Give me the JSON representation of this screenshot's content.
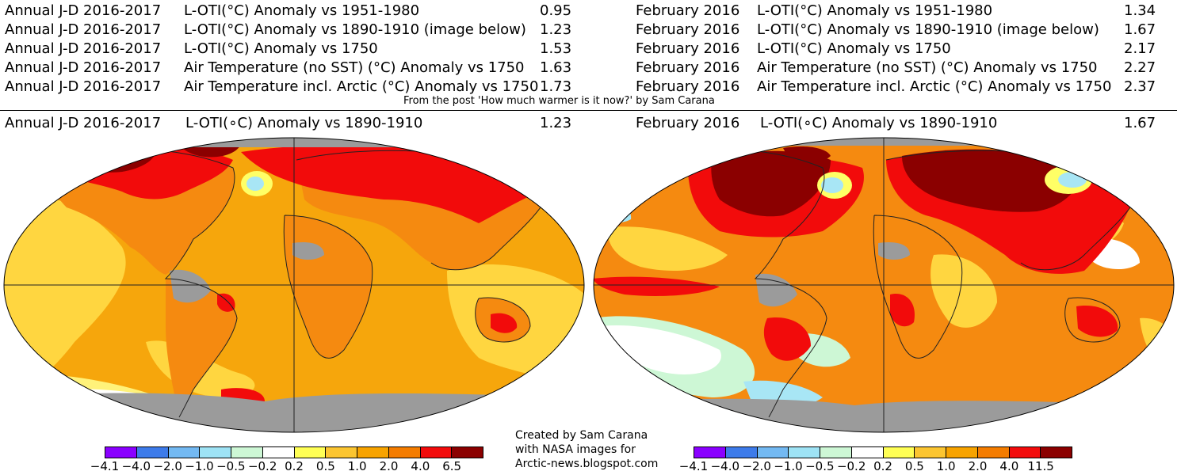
{
  "table_left": {
    "rows": [
      {
        "period": "Annual J-D 2016-2017",
        "metric": "L-OTI(°C) Anomaly vs 1951-1980",
        "value": "0.95"
      },
      {
        "period": "Annual J-D 2016-2017",
        "metric": "L-OTI(°C) Anomaly vs 1890-1910 (image below)",
        "value": "1.23"
      },
      {
        "period": "Annual J-D 2016-2017",
        "metric": "L-OTI(°C) Anomaly vs 1750",
        "value": "1.53"
      },
      {
        "period": "Annual J-D 2016-2017",
        "metric": "Air Temperature (no SST) (°C) Anomaly vs 1750",
        "value": "1.63"
      },
      {
        "period": "Annual J-D 2016-2017",
        "metric": "Air Temperature incl. Arctic (°C) Anomaly vs 1750",
        "value": "1.73"
      }
    ]
  },
  "table_right": {
    "rows": [
      {
        "period": "February 2016",
        "metric": "L-OTI(°C) Anomaly vs 1951-1980",
        "value": "1.34"
      },
      {
        "period": "February 2016",
        "metric": "L-OTI(°C) Anomaly vs 1890-1910 (image below)",
        "value": "1.67"
      },
      {
        "period": "February 2016",
        "metric": "L-OTI(°C) Anomaly vs 1750",
        "value": "2.17"
      },
      {
        "period": "February 2016",
        "metric": "Air Temperature (no SST) (°C) Anomaly vs 1750",
        "value": "2.27"
      },
      {
        "period": "February 2016",
        "metric": "Air Temperature incl. Arctic (°C) Anomaly vs 1750",
        "value": "2.37"
      }
    ]
  },
  "source_note": "From the post 'How much warmer is it now?' by Sam Carana",
  "map_left": {
    "period": "Annual J-D 2016-2017",
    "metric": "L-OTI(∘C) Anomaly vs 1890-1910",
    "value": "1.23",
    "legend_ticks": [
      "−4.1",
      "−4.0",
      "−2.0",
      "−1.0",
      "−0.5",
      "−0.2",
      "0.2",
      "0.5",
      "1.0",
      "2.0",
      "4.0",
      "6.5"
    ]
  },
  "map_right": {
    "period": "February 2016",
    "metric": "L-OTI(∘C) Anomaly vs 1890-1910",
    "value": "1.67",
    "legend_ticks": [
      "−4.1",
      "−4.0",
      "−2.0",
      "−1.0",
      "−0.5",
      "−0.2",
      "0.2",
      "0.5",
      "1.0",
      "2.0",
      "4.0",
      "11.5"
    ]
  },
  "legend_colors": [
    "#8a00ff",
    "#3d7bea",
    "#73b9f2",
    "#9ee3f5",
    "#cdf7d5",
    "#ffffff",
    "#ffff55",
    "#fbc531",
    "#f7a300",
    "#f47c00",
    "#f20b0b",
    "#8b0000"
  ],
  "map_colors": {
    "ocean_base": "#f6a60c",
    "land_base": "#f58a10",
    "no_data": "#9b9b9b",
    "warm": "#f20b0b",
    "hot": "#8b0000",
    "mild": "#ffd640",
    "cool": "#a8e6f5",
    "coast": "#222222"
  },
  "credit": {
    "line1": "Created by Sam Carana",
    "line2": "with NASA images for",
    "line3": "Arctic-news.blogspot.com"
  }
}
